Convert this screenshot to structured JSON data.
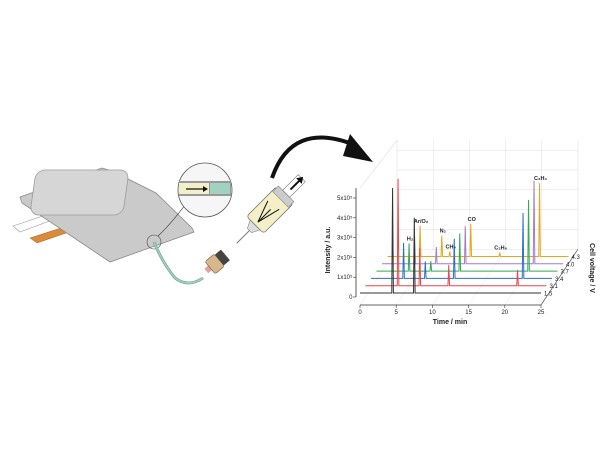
{
  "illustration": {
    "pouch_color": "#c9c9c9",
    "positive_tab_color": "#ffffff",
    "negative_tab_color": "#d98a3a",
    "tube_color": "#9fd3c0",
    "electrolyte_color": "#f3f0c8"
  },
  "chart_data": {
    "type": "line",
    "subtype": "3d-waterfall",
    "xlabel": "Time / min",
    "ylabel": "Intensity / a.u.",
    "zlabel": "Cell voltage / V",
    "xlim": [
      0,
      25
    ],
    "ylim": [
      0,
      5
    ],
    "x_ticks": [
      "0",
      "5",
      "10",
      "15",
      "20",
      "25"
    ],
    "y_ticks": [
      "0",
      "1x10⁵",
      "2x10⁵",
      "3x10⁵",
      "4x10⁵",
      "5x10⁵"
    ],
    "grid": true,
    "peak_times": [
      4.5,
      7.5,
      8.6,
      11.5,
      15.5,
      21.0
    ],
    "series": [
      {
        "name": "1.5",
        "color": "#333333",
        "values": [
          5.3,
          3.8,
          0,
          0,
          0,
          0
        ]
      },
      {
        "name": "3.1",
        "color": "#e8474a",
        "values": [
          5.4,
          1.9,
          0,
          1.05,
          0,
          0.8
        ]
      },
      {
        "name": "3.4",
        "color": "#2f6fc6",
        "values": [
          1.8,
          0.85,
          0,
          2.0,
          0,
          3.3
        ]
      },
      {
        "name": "3.7",
        "color": "#2eaa55",
        "values": [
          1.4,
          0.5,
          0,
          1.9,
          0,
          3.6
        ]
      },
      {
        "name": "4.0",
        "color": "#a47cc8",
        "values": [
          1.4,
          0.85,
          0,
          1.9,
          0,
          4.2
        ]
      },
      {
        "name": "4.3",
        "color": "#e0a820",
        "values": [
          1.55,
          1.05,
          0.25,
          1.65,
          0.2,
          3.7
        ]
      }
    ],
    "peak_labels": [
      {
        "text": "H₂",
        "series": 3,
        "peak": 0
      },
      {
        "text": "Ar/O₂",
        "series": 5,
        "peak": 0
      },
      {
        "text": "N₂",
        "series": 5,
        "peak": 1
      },
      {
        "text": "CH₄",
        "series": 5,
        "peak": 2
      },
      {
        "text": "CO",
        "series": 5,
        "peak": 3
      },
      {
        "text": "C₂H₆",
        "series": 5,
        "peak": 4
      },
      {
        "text": "C₂H₄",
        "series": 5,
        "peak": 5
      }
    ]
  }
}
